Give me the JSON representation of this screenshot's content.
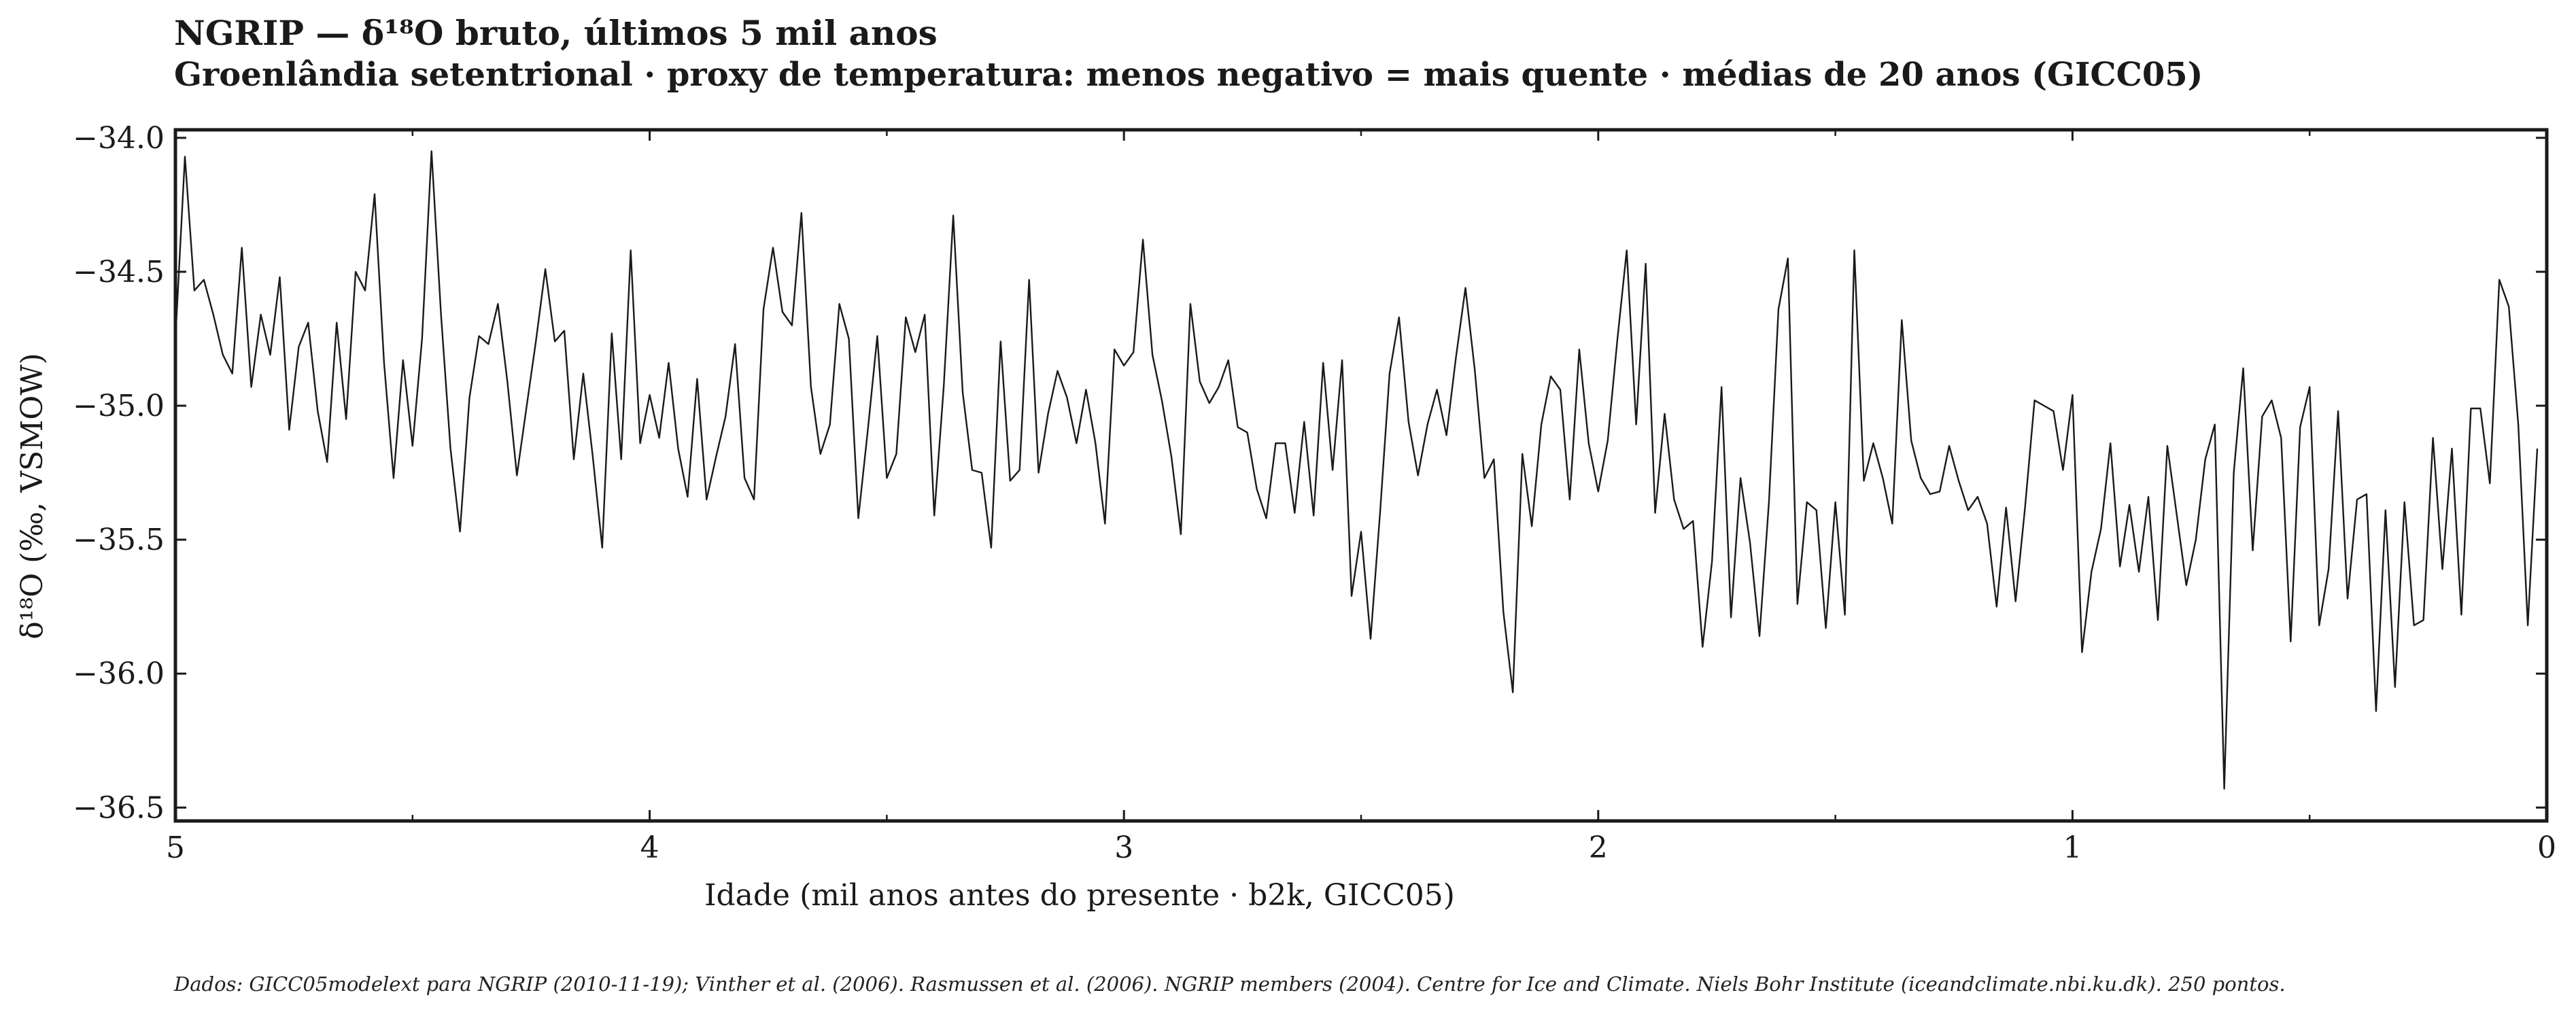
{
  "header": {
    "title": "NGRIP — δ¹⁸O bruto, últimos 5 mil anos",
    "subtitle": "Groenlândia setentrional · proxy de temperatura: menos negativo = mais quente · médias de 20 anos (GICC05)"
  },
  "footer": {
    "source": "Dados: GICC05modelext para NGRIP (2010-11-19); Vinther et al. (2006). Rasmussen et al. (2006). NGRIP members (2004). Centre for Ice and Climate. Niels Bohr Institute (iceandclimate.nbi.ku.dk). 250 pontos."
  },
  "chart_data": {
    "type": "line",
    "title": "NGRIP — δ¹⁸O bruto, últimos 5 mil anos",
    "subtitle": "Groenlândia setentrional · proxy de temperatura: menos negativo = mais quente · médias de 20 anos (GICC05)",
    "xlabel": "Idade (mil anos antes do presente · b2k, GICC05)",
    "ylabel": "δ¹⁸O (‰, VSMOW)",
    "xlim": [
      5,
      0
    ],
    "ylim": [
      -36.55,
      -33.97
    ],
    "x_reversed": true,
    "grid": false,
    "line_color": "#1a1a1a",
    "xticks": [
      5,
      4,
      3,
      2,
      1,
      0
    ],
    "xtick_labels": [
      "5",
      "4",
      "3",
      "2",
      "1",
      "0"
    ],
    "xticks_minor": [
      4.5,
      3.5,
      2.5,
      1.5,
      0.5
    ],
    "yticks": [
      -34.0,
      -34.5,
      -35.0,
      -35.5,
      -36.0,
      -36.5
    ],
    "ytick_labels": [
      "−34.0",
      "−34.5",
      "−35.0",
      "−35.5",
      "−36.0",
      "−36.5"
    ],
    "n_points": 250,
    "series": [
      {
        "x": [
          5.0,
          4.98,
          4.96,
          4.94,
          4.92,
          4.9,
          4.88,
          4.86,
          4.84,
          4.82,
          4.8,
          4.78,
          4.76,
          4.74,
          4.72,
          4.7,
          4.68,
          4.66,
          4.64,
          4.62,
          4.6,
          4.58,
          4.56,
          4.54,
          4.52,
          4.5,
          4.48,
          4.46,
          4.44,
          4.42,
          4.4,
          4.38,
          4.36,
          4.34,
          4.32,
          4.3,
          4.28,
          4.26,
          4.24,
          4.22,
          4.2,
          4.18,
          4.16,
          4.14,
          4.12,
          4.1,
          4.08,
          4.06,
          4.04,
          4.02,
          4.0,
          3.98,
          3.96,
          3.94,
          3.92,
          3.9,
          3.88,
          3.86,
          3.84,
          3.82,
          3.8,
          3.78,
          3.76,
          3.74,
          3.72,
          3.7,
          3.68,
          3.66,
          3.64,
          3.62,
          3.6,
          3.58,
          3.56,
          3.54,
          3.52,
          3.5,
          3.48,
          3.46,
          3.44,
          3.42,
          3.4,
          3.38,
          3.36,
          3.34,
          3.32,
          3.3,
          3.28,
          3.26,
          3.24,
          3.22,
          3.2,
          3.18,
          3.16,
          3.14,
          3.12,
          3.1,
          3.08,
          3.06,
          3.04,
          3.02,
          3.0,
          2.98,
          2.96,
          2.94,
          2.92,
          2.9,
          2.88,
          2.86,
          2.84,
          2.82,
          2.8,
          2.78,
          2.76,
          2.74,
          2.72,
          2.7,
          2.68,
          2.66,
          2.64,
          2.62,
          2.6,
          2.58,
          2.56,
          2.54,
          2.52,
          2.5,
          2.48,
          2.46,
          2.44,
          2.42,
          2.4,
          2.38,
          2.36,
          2.34,
          2.32,
          2.3,
          2.28,
          2.26,
          2.24,
          2.22,
          2.2,
          2.18,
          2.16,
          2.14,
          2.12,
          2.1,
          2.08,
          2.06,
          2.04,
          2.02,
          2.0,
          1.98,
          1.96,
          1.94,
          1.92,
          1.9,
          1.88,
          1.86,
          1.84,
          1.82,
          1.8,
          1.78,
          1.76,
          1.74,
          1.72,
          1.7,
          1.68,
          1.66,
          1.64,
          1.62,
          1.6,
          1.58,
          1.56,
          1.54,
          1.52,
          1.5,
          1.48,
          1.46,
          1.44,
          1.42,
          1.4,
          1.38,
          1.36,
          1.34,
          1.32,
          1.3,
          1.28,
          1.26,
          1.24,
          1.22,
          1.2,
          1.18,
          1.16,
          1.14,
          1.12,
          1.1,
          1.08,
          1.06,
          1.04,
          1.02,
          1.0,
          0.98,
          0.96,
          0.94,
          0.92,
          0.9,
          0.88,
          0.86,
          0.84,
          0.82,
          0.8,
          0.78,
          0.76,
          0.74,
          0.72,
          0.7,
          0.68,
          0.66,
          0.64,
          0.62,
          0.6,
          0.58,
          0.56,
          0.54,
          0.52,
          0.5,
          0.48,
          0.46,
          0.44,
          0.42,
          0.4,
          0.38,
          0.36,
          0.34,
          0.32,
          0.3,
          0.28,
          0.26,
          0.24,
          0.22,
          0.2,
          0.18,
          0.16,
          0.14,
          0.12,
          0.1,
          0.08,
          0.06,
          0.04,
          0.02
        ],
        "y": [
          -34.75,
          -34.07,
          -34.57,
          -34.53,
          -34.66,
          -34.81,
          -34.88,
          -34.41,
          -34.93,
          -34.66,
          -34.81,
          -34.52,
          -35.09,
          -34.78,
          -34.69,
          -35.02,
          -35.21,
          -34.69,
          -35.05,
          -34.5,
          -34.57,
          -34.21,
          -34.84,
          -35.27,
          -34.83,
          -35.15,
          -34.75,
          -34.05,
          -34.66,
          -35.16,
          -35.47,
          -34.97,
          -34.74,
          -34.77,
          -34.62,
          -34.91,
          -35.26,
          -35.01,
          -34.76,
          -34.49,
          -34.76,
          -34.72,
          -35.2,
          -34.88,
          -35.19,
          -35.53,
          -34.73,
          -35.2,
          -34.42,
          -35.14,
          -34.96,
          -35.12,
          -34.84,
          -35.16,
          -35.34,
          -34.9,
          -35.35,
          -35.19,
          -35.04,
          -34.77,
          -35.27,
          -35.35,
          -34.64,
          -34.41,
          -34.65,
          -34.7,
          -34.28,
          -34.93,
          -35.18,
          -35.07,
          -34.62,
          -34.75,
          -35.42,
          -35.09,
          -34.74,
          -35.27,
          -35.18,
          -34.67,
          -34.8,
          -34.66,
          -35.41,
          -34.93,
          -34.29,
          -34.95,
          -35.24,
          -35.25,
          -35.53,
          -34.76,
          -35.28,
          -35.24,
          -34.53,
          -35.25,
          -35.03,
          -34.87,
          -34.97,
          -35.14,
          -34.94,
          -35.14,
          -35.44,
          -34.79,
          -34.85,
          -34.8,
          -34.38,
          -34.81,
          -34.98,
          -35.19,
          -35.48,
          -34.62,
          -34.91,
          -34.99,
          -34.93,
          -34.83,
          -35.08,
          -35.1,
          -35.31,
          -35.42,
          -35.14,
          -35.14,
          -35.4,
          -35.06,
          -35.41,
          -34.84,
          -35.24,
          -34.83,
          -35.71,
          -35.47,
          -35.87,
          -35.4,
          -34.88,
          -34.67,
          -35.06,
          -35.26,
          -35.07,
          -34.94,
          -35.11,
          -34.82,
          -34.56,
          -34.87,
          -35.27,
          -35.2,
          -35.77,
          -36.07,
          -35.18,
          -35.45,
          -35.07,
          -34.89,
          -34.94,
          -35.35,
          -34.79,
          -35.14,
          -35.32,
          -35.13,
          -34.76,
          -34.42,
          -35.07,
          -34.47,
          -35.4,
          -35.03,
          -35.35,
          -35.46,
          -35.43,
          -35.9,
          -35.58,
          -34.93,
          -35.79,
          -35.27,
          -35.51,
          -35.86,
          -35.36,
          -34.64,
          -34.45,
          -35.74,
          -35.36,
          -35.39,
          -35.83,
          -35.36,
          -35.78,
          -34.42,
          -35.28,
          -35.14,
          -35.27,
          -35.44,
          -34.68,
          -35.13,
          -35.27,
          -35.33,
          -35.32,
          -35.15,
          -35.28,
          -35.39,
          -35.34,
          -35.44,
          -35.75,
          -35.38,
          -35.73,
          -35.38,
          -34.98,
          -35.0,
          -35.02,
          -35.24,
          -34.96,
          -35.92,
          -35.62,
          -35.46,
          -35.14,
          -35.6,
          -35.37,
          -35.62,
          -35.34,
          -35.8,
          -35.15,
          -35.41,
          -35.67,
          -35.5,
          -35.2,
          -35.07,
          -36.43,
          -35.25,
          -34.86,
          -35.54,
          -35.04,
          -34.98,
          -35.12,
          -35.88,
          -35.08,
          -34.93,
          -35.82,
          -35.61,
          -35.02,
          -35.72,
          -35.35,
          -35.33,
          -36.14,
          -35.39,
          -36.05,
          -35.36,
          -35.82,
          -35.8,
          -35.12,
          -35.61,
          -35.16,
          -35.78,
          -35.01,
          -35.01,
          -35.29,
          -34.53,
          -34.63,
          -35.07,
          -35.82,
          -35.16
        ]
      }
    ]
  }
}
